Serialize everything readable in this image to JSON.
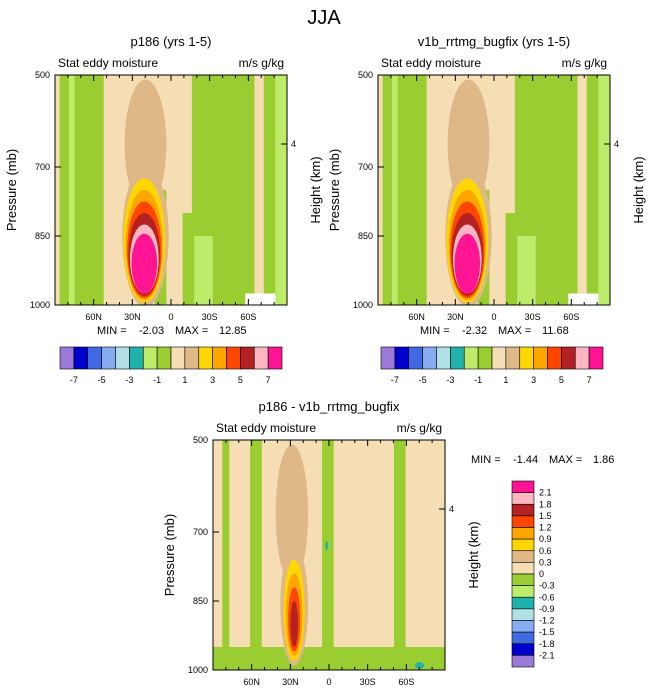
{
  "figure_title": "JJA",
  "chart_data": [
    {
      "type": "heatmap",
      "title": "p186 (yrs 1-5)",
      "subtitle_left": "Stat eddy moisture",
      "subtitle_right": "m/s g/kg",
      "ylabel": "Pressure (mb)",
      "ylabel_right": "Height (km)",
      "x_ticks": [
        "60N",
        "30N",
        "0",
        "30S",
        "60S"
      ],
      "y_ticks": [
        "500",
        "700",
        "850",
        "1000"
      ],
      "right_ticks": [
        "4"
      ],
      "stats": {
        "min_label": "MIN =",
        "min": "-2.03",
        "max_label": "MAX =",
        "max": "12.85"
      },
      "colorbar": {
        "orientation": "horizontal",
        "labels": [
          "-7",
          "-5",
          "-3",
          "-1",
          "1",
          "3",
          "5",
          "7"
        ],
        "colors": [
          "#9b79d6",
          "#0000cd",
          "#4169e1",
          "#87acf0",
          "#b0e0e6",
          "#20b2aa",
          "#bdec6b",
          "#9acd32",
          "#f5deb3",
          "#deb887",
          "#ffd700",
          "#ffa500",
          "#ff4500",
          "#b22222",
          "#ffb6c1",
          "#ff1493"
        ]
      }
    },
    {
      "type": "heatmap",
      "title": "v1b_rrtmg_bugfix (yrs 1-5)",
      "subtitle_left": "Stat eddy moisture",
      "subtitle_right": "m/s g/kg",
      "ylabel": "Pressure (mb)",
      "ylabel_right": "Height (km)",
      "x_ticks": [
        "60N",
        "30N",
        "0",
        "30S",
        "60S"
      ],
      "y_ticks": [
        "500",
        "700",
        "850",
        "1000"
      ],
      "right_ticks": [
        "4"
      ],
      "stats": {
        "min_label": "MIN =",
        "min": "-2.32",
        "max_label": "MAX =",
        "max": "11.68"
      },
      "colorbar": {
        "orientation": "horizontal",
        "labels": [
          "-7",
          "-5",
          "-3",
          "-1",
          "1",
          "3",
          "5",
          "7"
        ],
        "colors": [
          "#9b79d6",
          "#0000cd",
          "#4169e1",
          "#87acf0",
          "#b0e0e6",
          "#20b2aa",
          "#bdec6b",
          "#9acd32",
          "#f5deb3",
          "#deb887",
          "#ffd700",
          "#ffa500",
          "#ff4500",
          "#b22222",
          "#ffb6c1",
          "#ff1493"
        ]
      }
    },
    {
      "type": "heatmap",
      "title": "p186 - v1b_rrtmg_bugfix",
      "subtitle_left": "Stat eddy moisture",
      "subtitle_right": "m/s g/kg",
      "ylabel": "Pressure (mb)",
      "ylabel_right": "Height (km)",
      "x_ticks": [
        "60N",
        "30N",
        "0",
        "30S",
        "60S"
      ],
      "y_ticks": [
        "500",
        "700",
        "850",
        "1000"
      ],
      "right_ticks": [
        "4"
      ],
      "stats": {
        "min_label": "MIN =",
        "min": "-1.44",
        "max_label": "MAX =",
        "max": "1.86"
      },
      "colorbar": {
        "orientation": "vertical",
        "labels": [
          "2.1",
          "1.8",
          "1.5",
          "1.2",
          "0.9",
          "0.6",
          "0.3",
          "0",
          "-0.3",
          "-0.6",
          "-0.9",
          "-1.2",
          "-1.5",
          "-1.8",
          "-2.1"
        ],
        "colors": [
          "#ff1493",
          "#ffb6c1",
          "#b22222",
          "#ff4500",
          "#ffa500",
          "#ffd700",
          "#deb887",
          "#f5deb3",
          "#9acd32",
          "#bdec6b",
          "#20b2aa",
          "#b0e0e6",
          "#87acf0",
          "#4169e1",
          "#0000cd",
          "#9b79d6"
        ]
      }
    }
  ]
}
